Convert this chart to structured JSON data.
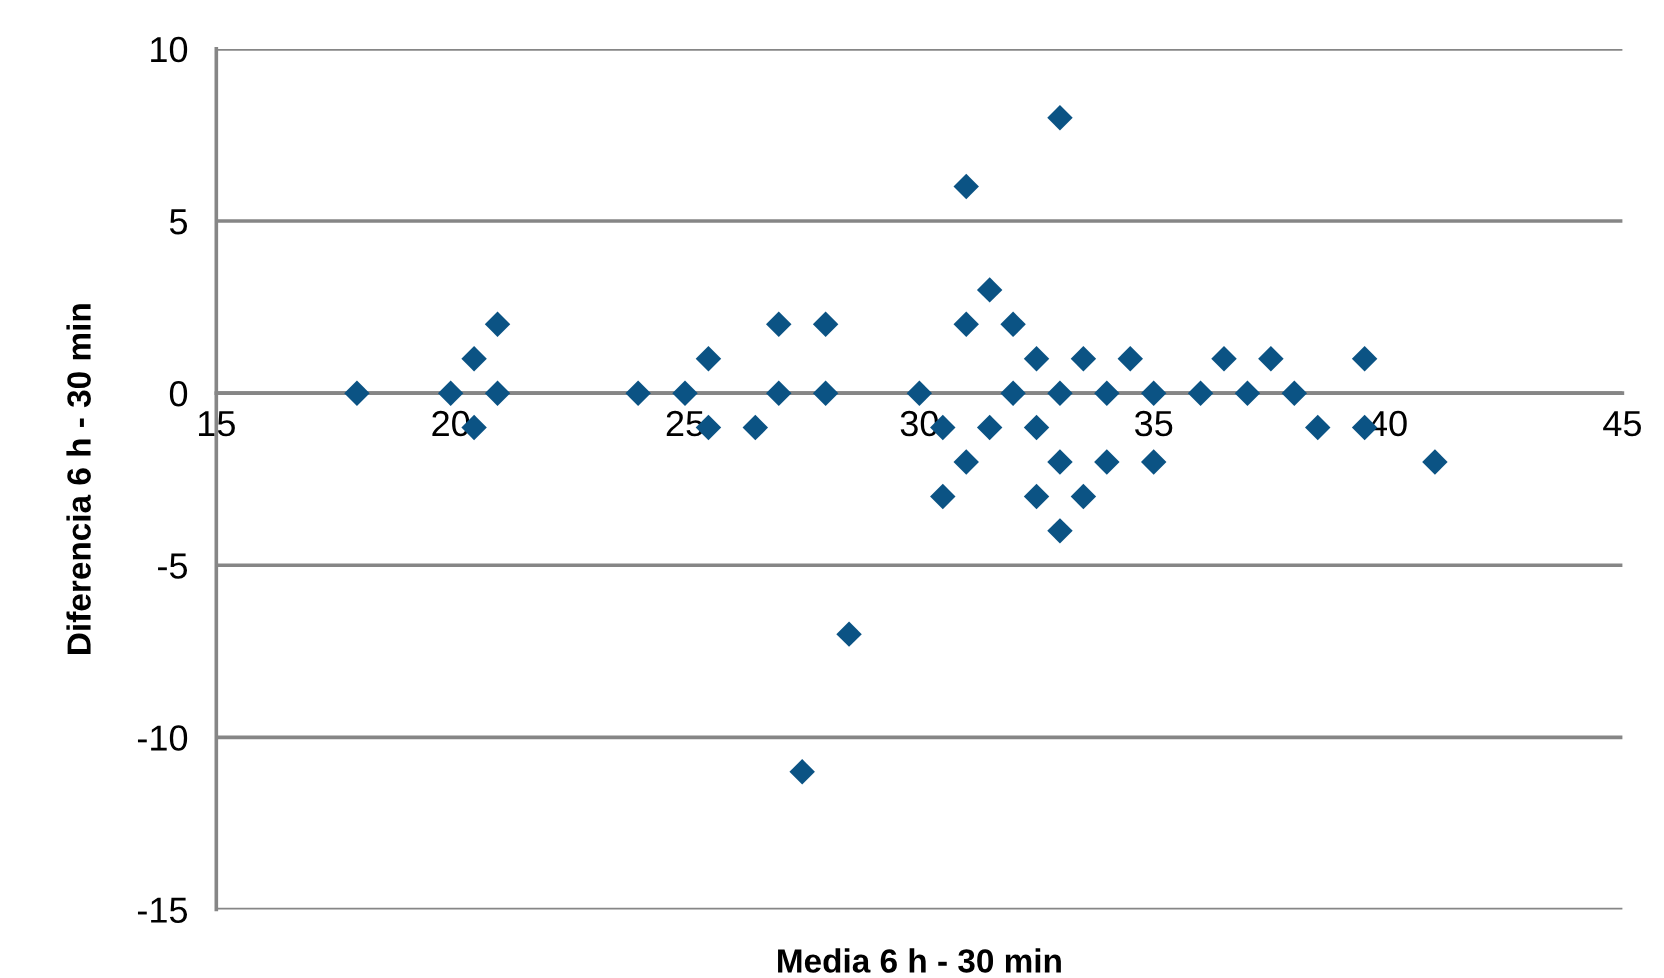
{
  "chart_data": {
    "type": "scatter",
    "xlabel": "Media 6 h - 30 min",
    "ylabel": "Diferencia 6 h - 30 min",
    "xlim": [
      15,
      45
    ],
    "xticks": [
      15,
      20,
      25,
      30,
      35,
      40,
      45
    ],
    "ylim": [
      -15,
      10
    ],
    "yticks": [
      -15,
      -10,
      -5,
      0,
      5,
      10
    ],
    "grid": "y",
    "marker": "diamond",
    "legend": false,
    "series": [
      {
        "color": "#0b5384",
        "x": [
          18,
          20,
          21,
          24,
          25,
          27,
          28,
          30,
          32,
          33,
          34,
          35,
          36,
          37,
          38,
          20.5,
          25.5,
          32.5,
          33.5,
          34.5,
          36.5,
          37.5,
          39.5,
          21,
          27,
          28,
          31,
          32,
          31.5,
          31,
          33,
          20.5,
          25.5,
          26.5,
          30.5,
          31.5,
          32.5,
          38.5,
          39.5,
          31,
          33,
          34,
          35,
          41,
          30.5,
          32.5,
          33.5,
          33,
          28.5,
          27.5
        ],
        "values": [
          0,
          0,
          0,
          0,
          0,
          0,
          0,
          0,
          0,
          0,
          0,
          0,
          0,
          0,
          0,
          1,
          1,
          1,
          1,
          1,
          1,
          1,
          1,
          2,
          2,
          2,
          2,
          2,
          3,
          6,
          8,
          -1,
          -1,
          -1,
          -1,
          -1,
          -1,
          -1,
          -1,
          -2,
          -2,
          -2,
          -2,
          -2,
          -3,
          -3,
          -3,
          -4,
          -7,
          -11
        ]
      }
    ]
  }
}
